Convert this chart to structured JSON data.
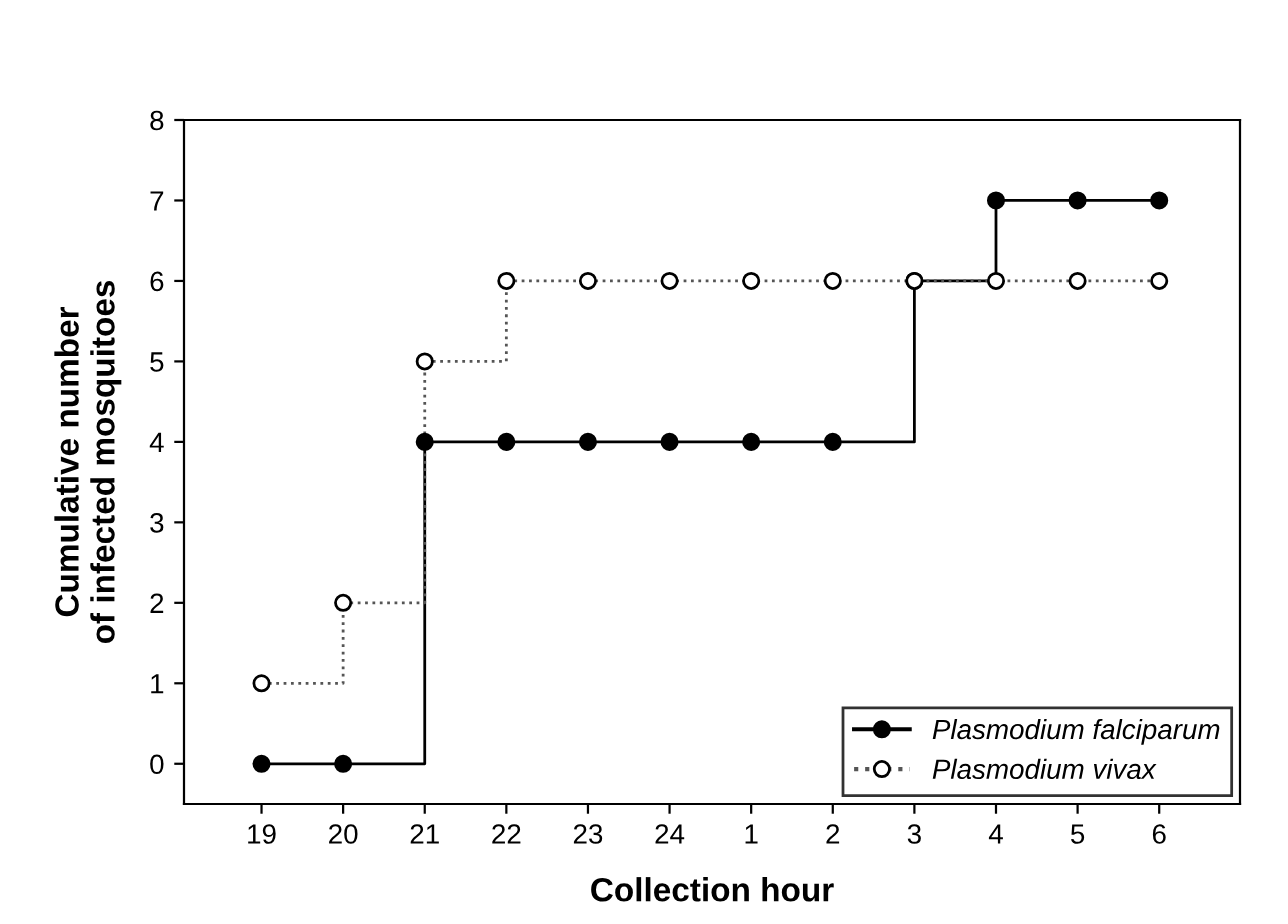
{
  "chart_data": {
    "type": "step",
    "xlabel": "Collection hour",
    "ylabel": "Cumulative number\nof infected mosquitoes",
    "categories": [
      "19",
      "20",
      "21",
      "22",
      "23",
      "24",
      "1",
      "2",
      "3",
      "4",
      "5",
      "6"
    ],
    "series": [
      {
        "name": "Plasmodium falciparum",
        "color": "#000000",
        "line_style": "solid",
        "values": [
          0,
          0,
          4,
          4,
          4,
          4,
          4,
          4,
          6,
          7,
          7,
          7
        ]
      },
      {
        "name": "Plasmodium vivax",
        "color": "#000000",
        "line_style": "dotted",
        "values": [
          1,
          2,
          5,
          6,
          6,
          6,
          6,
          6,
          6,
          6,
          6,
          6
        ]
      }
    ],
    "ylim": [
      -0.5,
      8
    ],
    "yticks": [
      0,
      1,
      2,
      3,
      4,
      5,
      6,
      7,
      8
    ],
    "marker": "circle",
    "legend": "bottom right",
    "grid": false
  }
}
